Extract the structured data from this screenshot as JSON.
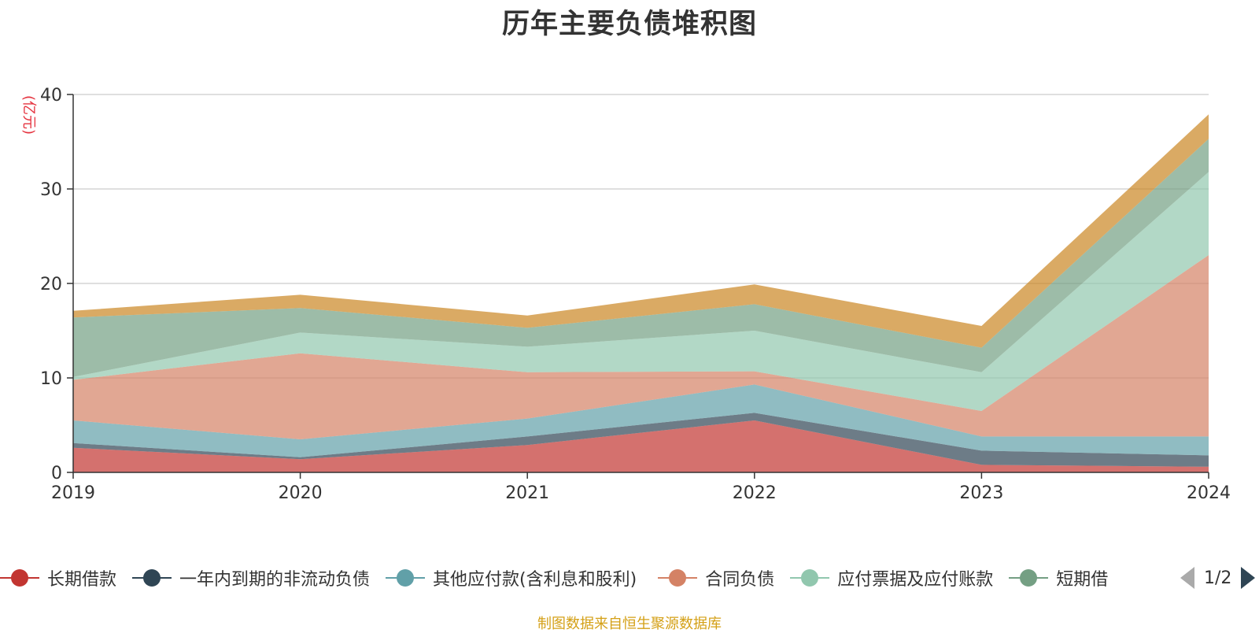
{
  "chart_data": {
    "type": "area",
    "stacked": true,
    "title": "历年主要负债堆积图",
    "ylabel": "(亿元)",
    "xlabel": "",
    "x": [
      "2019",
      "2020",
      "2021",
      "2022",
      "2023",
      "2024"
    ],
    "ylim": [
      0,
      40
    ],
    "yticks": [
      "0",
      "10",
      "20",
      "30",
      "40"
    ],
    "grid": true,
    "legend_placement": "bottom",
    "series": [
      {
        "name": "长期借款",
        "color": "#c23531",
        "values": [
          2.6,
          1.4,
          2.9,
          5.5,
          0.8,
          0.6
        ]
      },
      {
        "name": "一年内到期的非流动负债",
        "color": "#2f4554",
        "values": [
          0.5,
          0.2,
          0.9,
          0.8,
          1.5,
          1.2
        ]
      },
      {
        "name": "其他应付款(含利息和股利)",
        "color": "#61a0a8",
        "values": [
          2.4,
          1.9,
          1.9,
          3.0,
          1.5,
          2.0
        ]
      },
      {
        "name": "合同负债",
        "color": "#d48265",
        "values": [
          4.3,
          9.1,
          4.9,
          1.4,
          2.7,
          19.2
        ]
      },
      {
        "name": "应付票据及应付账款",
        "color": "#91c7ae",
        "values": [
          0.3,
          2.2,
          2.7,
          4.3,
          4.1,
          8.8
        ]
      },
      {
        "name": "短期借款",
        "color": "#749f83",
        "values": [
          6.3,
          2.6,
          2.0,
          2.8,
          2.6,
          3.5
        ]
      },
      {
        "name": "",
        "color": "#ca8622",
        "values": [
          0.7,
          1.4,
          1.3,
          2.1,
          2.3,
          2.6
        ]
      }
    ]
  },
  "legend": {
    "visible_labels": [
      "长期借款",
      "一年内到期的非流动负债",
      "其他应付款(含利息和股利)",
      "合同负债",
      "应付票据及应付账款",
      "短期借"
    ],
    "pager": "1/2"
  },
  "footer": {
    "source": "制图数据来自恒生聚源数据库"
  }
}
